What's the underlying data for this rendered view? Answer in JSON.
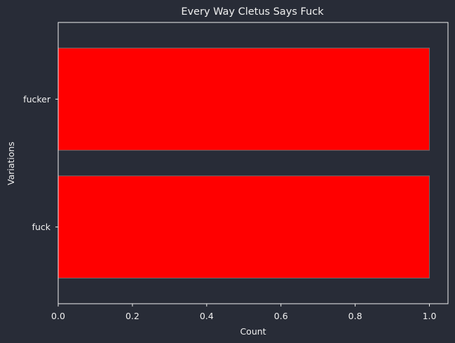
{
  "chart_data": {
    "type": "bar",
    "orientation": "horizontal",
    "title": "Every Way Cletus Says Fuck",
    "xlabel": "Count",
    "ylabel": "Variations",
    "categories": [
      "fuck",
      "fucker"
    ],
    "values": [
      1,
      1
    ],
    "xlim": [
      0,
      1.05
    ],
    "xticks": [
      "0.0",
      "0.2",
      "0.4",
      "0.6",
      "0.8",
      "1.0"
    ],
    "grid": false,
    "legend": "none",
    "colors": {
      "background": "#282c37",
      "bar": "#ff0000",
      "bar_edge": "#6b6b6b",
      "axis": "#f0f0f0",
      "text": "#f0f0f0"
    }
  }
}
